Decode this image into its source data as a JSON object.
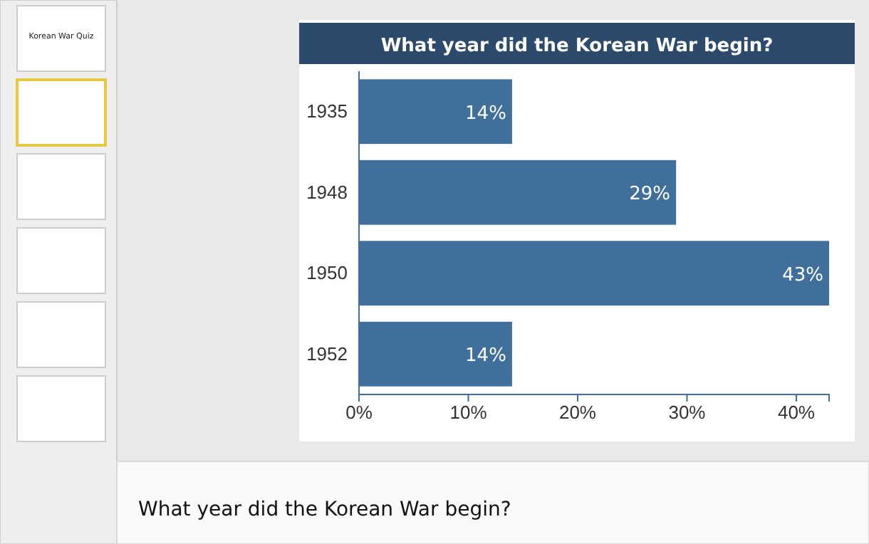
{
  "chart_data": {
    "type": "bar",
    "orientation": "horizontal",
    "title": "What year did the Korean War begin?",
    "categories": [
      "1935",
      "1948",
      "1950",
      "1952"
    ],
    "values": [
      14,
      29,
      43,
      14
    ],
    "value_labels": [
      "14%",
      "29%",
      "43%",
      "14%"
    ],
    "color": "#3f6f9a",
    "xlim": [
      0,
      43
    ],
    "xticks": [
      {
        "value": 0,
        "label": "0%"
      },
      {
        "value": 10,
        "label": "10%"
      },
      {
        "value": 20,
        "label": "20%"
      },
      {
        "value": 30,
        "label": "30%"
      },
      {
        "value": 40,
        "label": "40%"
      }
    ],
    "grid": false,
    "annotations": [
      "What year did the Korean War begin?",
      "Korean War Quiz"
    ]
  }
}
